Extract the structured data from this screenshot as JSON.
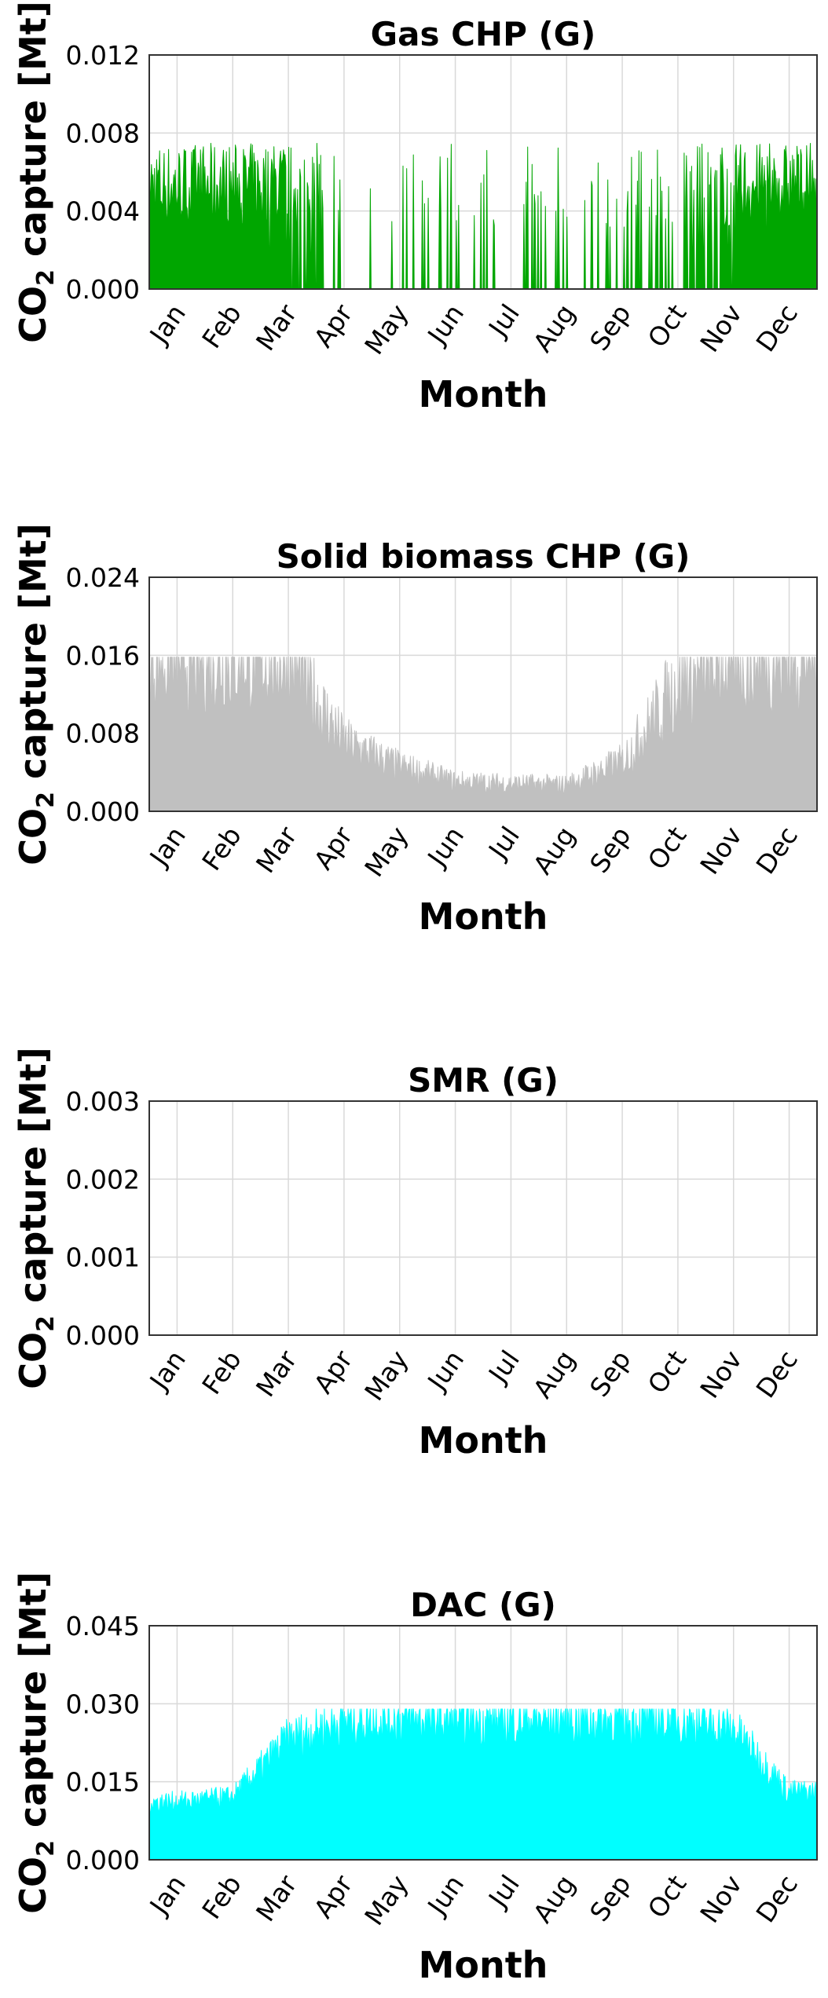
{
  "figure": {
    "charts": [
      {
        "title": "Gas CHP (G)",
        "ylabel_main": "CO",
        "ylabel_sub": "2",
        "ylabel_rest": " capture [Mt]",
        "xlabel": "Month",
        "ytick_labels": [
          "0.000",
          "0.004",
          "0.008",
          "0.012"
        ]
      },
      {
        "title": "Solid biomass CHP (G)",
        "ylabel_main": "CO",
        "ylabel_sub": "2",
        "ylabel_rest": " capture [Mt]",
        "xlabel": "Month",
        "ytick_labels": [
          "0.000",
          "0.008",
          "0.016",
          "0.024"
        ]
      },
      {
        "title": "SMR (G)",
        "ylabel_main": "CO",
        "ylabel_sub": "2",
        "ylabel_rest": " capture [Mt]",
        "xlabel": "Month",
        "ytick_labels": [
          "0.000",
          "0.001",
          "0.002",
          "0.003"
        ]
      },
      {
        "title": "DAC (G)",
        "ylabel_main": "CO",
        "ylabel_sub": "2",
        "ylabel_rest": " capture [Mt]",
        "xlabel": "Month",
        "ytick_labels": [
          "0.000",
          "0.015",
          "0.030",
          "0.045"
        ]
      }
    ],
    "month_labels": [
      "Jan",
      "Feb",
      "Mar",
      "Apr",
      "May",
      "Jun",
      "Jul",
      "Aug",
      "Sep",
      "Oct",
      "Nov",
      "Dec"
    ]
  },
  "chart_data": [
    {
      "type": "area",
      "title": "Gas CHP (G)",
      "xlabel": "Month",
      "ylabel": "CO2 capture [Mt]",
      "x": [
        "Jan",
        "Feb",
        "Mar",
        "Apr",
        "May",
        "Jun",
        "Jul",
        "Aug",
        "Sep",
        "Oct",
        "Nov",
        "Dec"
      ],
      "xlim": [
        0,
        12
      ],
      "ylim": [
        0,
        0.012
      ],
      "yticks": [
        0,
        0.004,
        0.008,
        0.012
      ],
      "grid": true,
      "color": "#00a600",
      "series": [
        {
          "values": [
            0.0075,
            0.0074,
            0.0062,
            0,
            0.0006,
            0.0005,
            0.0004,
            0.0004,
            0.0002,
            0.001,
            0.0062,
            0.0075
          ]
        }
      ]
    },
    {
      "type": "area",
      "title": "Solid biomass CHP (G)",
      "xlabel": "Month",
      "ylabel": "CO2 capture [Mt]",
      "x": [
        "Jan",
        "Feb",
        "Mar",
        "Apr",
        "May",
        "Jun",
        "Jul",
        "Aug",
        "Sep",
        "Oct",
        "Nov",
        "Dec"
      ],
      "xlim": [
        0,
        12
      ],
      "ylim": [
        0,
        0.024
      ],
      "yticks": [
        0,
        0.008,
        0.016,
        0.024
      ],
      "grid": true,
      "color": "#c0c0c0",
      "series": [
        {
          "values": [
            0.0158,
            0.0158,
            0.0155,
            0.007,
            0.0045,
            0.003,
            0.0028,
            0.0027,
            0.005,
            0.013,
            0.0152,
            0.0158
          ]
        }
      ]
    },
    {
      "type": "area",
      "title": "SMR (G)",
      "xlabel": "Month",
      "ylabel": "CO2 capture [Mt]",
      "x": [
        "Jan",
        "Feb",
        "Mar",
        "Apr",
        "May",
        "Jun",
        "Jul",
        "Aug",
        "Sep",
        "Oct",
        "Nov",
        "Dec"
      ],
      "xlim": [
        0,
        12
      ],
      "ylim": [
        0,
        0.003
      ],
      "yticks": [
        0,
        0.001,
        0.002,
        0.003
      ],
      "grid": true,
      "color": "#888888",
      "series": [
        {
          "values": [
            0,
            0,
            0,
            0,
            0,
            0,
            0,
            0,
            0,
            0,
            0,
            0
          ]
        }
      ]
    },
    {
      "type": "area",
      "title": "DAC (G)",
      "xlabel": "Month",
      "ylabel": "CO2 capture [Mt]",
      "x": [
        "Jan",
        "Feb",
        "Mar",
        "Apr",
        "May",
        "Jun",
        "Jul",
        "Aug",
        "Sep",
        "Oct",
        "Nov",
        "Dec"
      ],
      "xlim": [
        0,
        12
      ],
      "ylim": [
        0,
        0.045
      ],
      "yticks": [
        0,
        0.015,
        0.03,
        0.045
      ],
      "grid": true,
      "color": "#00ffff",
      "series": [
        {
          "values": [
            0.012,
            0.013,
            0.025,
            0.029,
            0.029,
            0.029,
            0.029,
            0.029,
            0.029,
            0.029,
            0.027,
            0.014
          ]
        }
      ]
    }
  ]
}
